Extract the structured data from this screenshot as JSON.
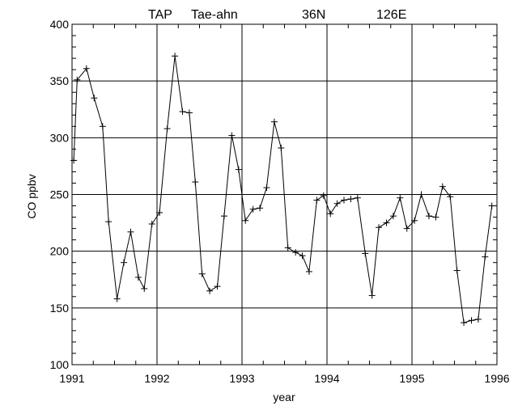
{
  "chart_data": {
    "type": "line",
    "title": {
      "station": "TAP",
      "site": "Tae-ahn",
      "lat": "36N",
      "lon": "126E"
    },
    "xlabel": "year",
    "ylabel": "CO ppbv",
    "xlim": [
      1991,
      1996
    ],
    "ylim": [
      100,
      400
    ],
    "x_ticks": [
      {
        "value": 1991,
        "label": "1991"
      },
      {
        "value": 1992,
        "label": "1992"
      },
      {
        "value": 1993,
        "label": "1993"
      },
      {
        "value": 1994,
        "label": "1994"
      },
      {
        "value": 1995,
        "label": "1995"
      },
      {
        "value": 1996,
        "label": "1996"
      }
    ],
    "y_ticks": [
      {
        "value": 100,
        "label": "100"
      },
      {
        "value": 150,
        "label": "150"
      },
      {
        "value": 200,
        "label": "200"
      },
      {
        "value": 250,
        "label": "250"
      },
      {
        "value": 300,
        "label": "300"
      },
      {
        "value": 350,
        "label": "350"
      },
      {
        "value": 400,
        "label": "400"
      }
    ],
    "grid": true,
    "marker": "plus",
    "series": [
      {
        "x": [
          1991.02,
          1991.06,
          1991.17,
          1991.26,
          1991.36,
          1991.43,
          1991.53,
          1991.61,
          1991.69,
          1991.78,
          1991.85,
          1991.94,
          1992.03,
          1992.12,
          1992.21,
          1992.3,
          1992.38,
          1992.45,
          1992.53,
          1992.62,
          1992.71,
          1992.79,
          1992.88,
          1992.96,
          1993.04,
          1993.13,
          1993.21,
          1993.29,
          1993.38,
          1993.46,
          1993.54,
          1993.63,
          1993.71,
          1993.79,
          1993.88,
          1993.96,
          1994.04,
          1994.12,
          1994.2,
          1994.28,
          1994.36,
          1994.45,
          1994.53,
          1994.61,
          1994.7,
          1994.78,
          1994.86,
          1994.94,
          1995.03,
          1995.11,
          1995.2,
          1995.28,
          1995.36,
          1995.45,
          1995.53,
          1995.61,
          1995.7,
          1995.78,
          1995.86,
          1995.94
        ],
        "y": [
          280,
          351,
          361,
          335,
          310,
          226,
          158,
          190,
          217,
          177,
          167,
          224,
          234,
          308,
          372,
          323,
          322,
          261,
          180,
          165,
          169,
          231,
          302,
          272,
          227,
          237,
          238,
          256,
          314,
          291,
          203,
          199,
          196,
          182,
          245,
          249,
          233,
          242,
          245,
          246,
          247,
          198,
          161,
          221,
          225,
          231,
          247,
          220,
          227,
          250,
          231,
          230,
          257,
          248,
          183,
          137,
          139,
          140,
          195,
          240
        ]
      }
    ]
  }
}
